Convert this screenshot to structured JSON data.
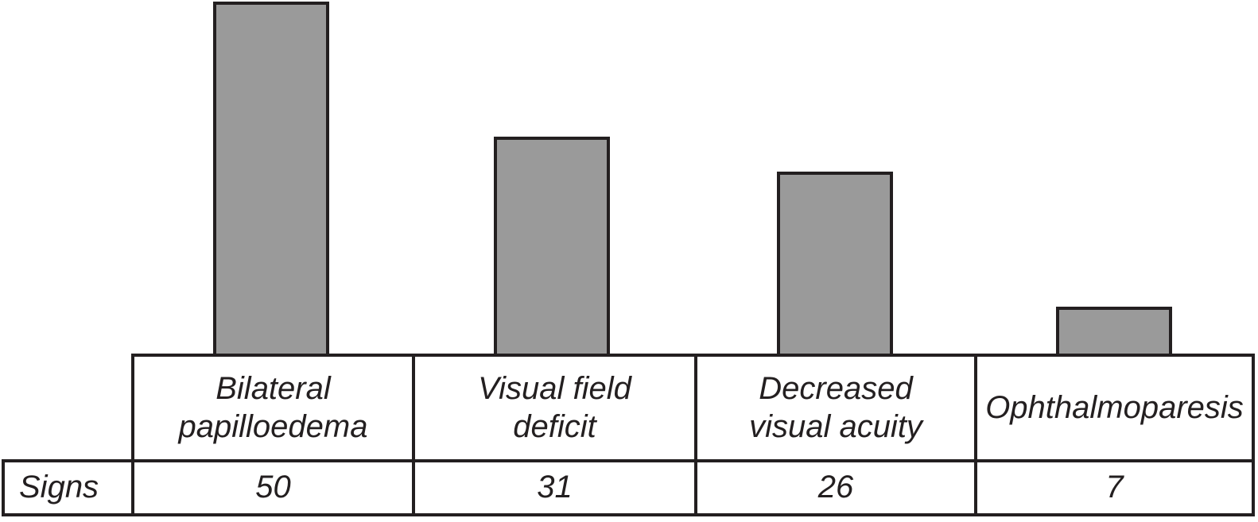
{
  "chart_data": {
    "type": "bar",
    "title": "",
    "xlabel": "",
    "ylabel": "",
    "categories": [
      "Bilateral papilloedema",
      "Visual field deficit",
      "Decreased visual acuity",
      "Ophthalmoparesis"
    ],
    "categories_lines": [
      [
        "Bilateral",
        "papilloedema"
      ],
      [
        "Visual field",
        "deficit"
      ],
      [
        "Decreased",
        "visual acuity"
      ],
      [
        "Ophthalmoparesis"
      ]
    ],
    "series": [
      {
        "name": "Signs",
        "values": [
          50,
          31,
          26,
          7
        ]
      }
    ],
    "values": [
      50,
      31,
      26,
      7
    ],
    "row_header": "Signs",
    "ylim": [
      0,
      50
    ],
    "grid": false,
    "legend_position": "none",
    "y_axis_shown": false,
    "bar_fill_color": "#9a9a9a",
    "bar_border_color": "#231f20",
    "layout_hint": "grey bars rest on top of a two-row table: row 1 = category names, row 2 = 'Signs' counts; tallest bar reaches the top edge of the image"
  }
}
